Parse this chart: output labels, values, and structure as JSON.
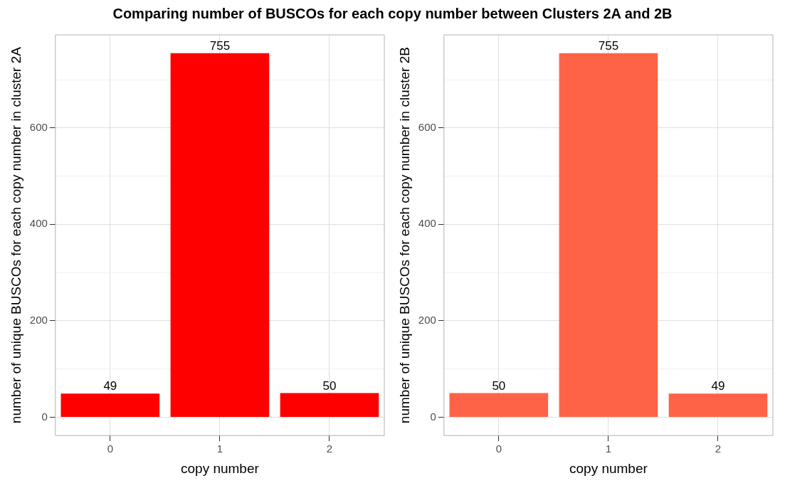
{
  "chart_data": [
    {
      "type": "bar",
      "title": "Comparing number of BUSCOs for each copy number between Clusters 2A and 2B",
      "xlabel": "copy number",
      "ylabel": "number of unique BUSCOs for each copy number in cluster 2A",
      "categories": [
        "0",
        "1",
        "2"
      ],
      "values": [
        49,
        755,
        50
      ],
      "color": "#ff0000",
      "ylim": [
        -38,
        793
      ],
      "yticks": [
        0,
        {
          "value": 100,
          "label": null
        },
        200,
        {
          "value": 300,
          "label": null
        },
        400,
        {
          "value": 500,
          "label": null
        },
        600,
        {
          "value": 700,
          "label": null
        }
      ],
      "grid": true,
      "data_labels": true
    },
    {
      "type": "bar",
      "xlabel": "copy number",
      "ylabel": "number of unique BUSCOs for each copy number in cluster 2B",
      "categories": [
        "0",
        "1",
        "2"
      ],
      "values": [
        50,
        755,
        49
      ],
      "color": "#ff6347",
      "ylim": [
        -38,
        793
      ],
      "yticks": [
        0,
        {
          "value": 100,
          "label": null
        },
        200,
        {
          "value": 300,
          "label": null
        },
        400,
        {
          "value": 500,
          "label": null
        },
        600,
        {
          "value": 700,
          "label": null
        }
      ],
      "grid": true,
      "data_labels": true
    }
  ]
}
